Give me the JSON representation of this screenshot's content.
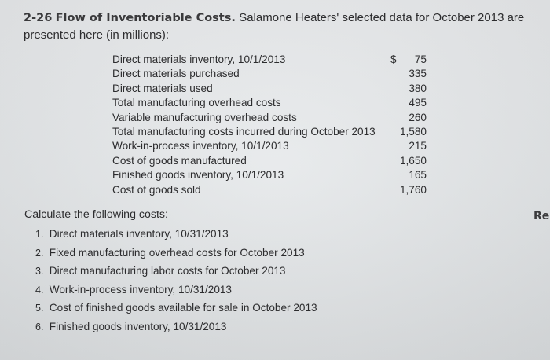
{
  "problem": {
    "number": "2-26",
    "title": "Flow of Inventoriable Costs.",
    "intro_line1": "Salamone Heaters' selected data for October 2013 are",
    "intro_line2": "presented here (in millions):"
  },
  "data_items": [
    {
      "label": "Direct materials inventory, 10/1/2013",
      "currency": "$",
      "value": "75"
    },
    {
      "label": "Direct materials purchased",
      "value": "335"
    },
    {
      "label": "Direct materials used",
      "value": "380"
    },
    {
      "label": "Total manufacturing overhead costs",
      "value": "495"
    },
    {
      "label": "Variable manufacturing overhead costs",
      "value": "260"
    },
    {
      "label": "Total manufacturing costs incurred during October 2013",
      "value": "1,580"
    },
    {
      "label": "Work-in-process inventory, 10/1/2013",
      "value": "215"
    },
    {
      "label": "Cost of goods manufactured",
      "value": "1,650"
    },
    {
      "label": "Finished goods inventory, 10/1/2013",
      "value": "165"
    },
    {
      "label": "Cost of goods sold",
      "value": "1,760"
    }
  ],
  "instructions": "Calculate the following costs:",
  "questions": [
    {
      "num": "1.",
      "text": "Direct materials inventory, 10/31/2013"
    },
    {
      "num": "2.",
      "text": "Fixed manufacturing overhead costs for October 2013"
    },
    {
      "num": "3.",
      "text": "Direct manufacturing labor costs for October 2013"
    },
    {
      "num": "4.",
      "text": "Work-in-process inventory, 10/31/2013"
    },
    {
      "num": "5.",
      "text": "Cost of finished goods available for sale in October 2013"
    },
    {
      "num": "6.",
      "text": "Finished goods inventory, 10/31/2013"
    }
  ],
  "edge_text": "Re"
}
